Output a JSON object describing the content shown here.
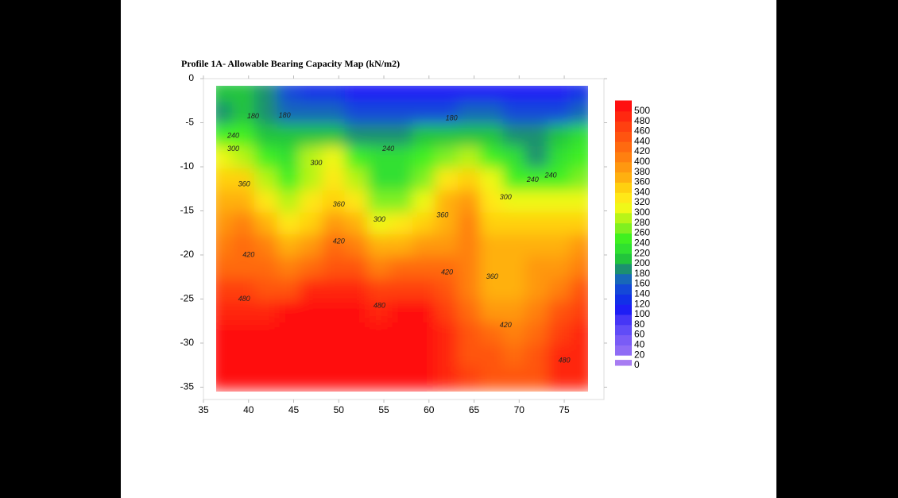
{
  "chart_data": {
    "type": "contour",
    "title": "Profile 1A- Allowable Bearing Capacity Map (kN/m2)",
    "xlim": [
      35,
      79.4
    ],
    "ylim": [
      -36.4,
      0
    ],
    "xticks": [
      35,
      40,
      45,
      50,
      55,
      60,
      65,
      70,
      75
    ],
    "yticks": [
      0,
      -5,
      -10,
      -15,
      -20,
      -25,
      -30,
      -35
    ],
    "x": [
      37,
      39.5,
      42,
      44.5,
      47,
      49.5,
      52,
      54.5,
      57,
      59.5,
      62,
      64.5,
      67,
      69.5,
      72,
      74.5,
      77
    ],
    "y": [
      -1.5,
      -4,
      -6.5,
      -9,
      -11.5,
      -14,
      -16.5,
      -19,
      -21.5,
      -24,
      -26.5,
      -29,
      -31.5,
      -34
    ],
    "z": [
      [
        200,
        210,
        180,
        140,
        130,
        120,
        110,
        100,
        100,
        100,
        100,
        100,
        100,
        100,
        100,
        110,
        130
      ],
      [
        190,
        210,
        190,
        170,
        170,
        160,
        150,
        140,
        140,
        140,
        150,
        160,
        160,
        150,
        140,
        140,
        160
      ],
      [
        240,
        240,
        210,
        200,
        200,
        200,
        190,
        190,
        190,
        200,
        210,
        210,
        200,
        190,
        180,
        200,
        220
      ],
      [
        300,
        290,
        250,
        230,
        280,
        300,
        250,
        220,
        220,
        240,
        270,
        280,
        250,
        220,
        190,
        220,
        240
      ],
      [
        340,
        340,
        290,
        240,
        290,
        320,
        280,
        220,
        230,
        270,
        330,
        340,
        300,
        250,
        240,
        250,
        260
      ],
      [
        370,
        370,
        330,
        280,
        320,
        350,
        330,
        260,
        270,
        310,
        360,
        380,
        320,
        300,
        300,
        300,
        300
      ],
      [
        390,
        400,
        370,
        320,
        350,
        380,
        360,
        310,
        320,
        340,
        370,
        410,
        340,
        340,
        340,
        340,
        340
      ],
      [
        410,
        420,
        400,
        360,
        390,
        420,
        400,
        360,
        370,
        380,
        390,
        410,
        360,
        360,
        370,
        370,
        380
      ],
      [
        430,
        430,
        420,
        400,
        430,
        450,
        440,
        410,
        420,
        420,
        420,
        400,
        360,
        360,
        380,
        390,
        410
      ],
      [
        460,
        460,
        450,
        450,
        480,
        490,
        480,
        460,
        470,
        460,
        440,
        400,
        370,
        370,
        390,
        410,
        440
      ],
      [
        490,
        490,
        490,
        500,
        500,
        500,
        500,
        490,
        500,
        500,
        470,
        420,
        390,
        390,
        410,
        440,
        460
      ],
      [
        500,
        500,
        500,
        500,
        500,
        500,
        500,
        500,
        500,
        500,
        480,
        440,
        420,
        410,
        430,
        470,
        480
      ],
      [
        500,
        500,
        500,
        500,
        500,
        500,
        500,
        500,
        500,
        500,
        490,
        450,
        440,
        430,
        440,
        480,
        490
      ],
      [
        500,
        500,
        500,
        500,
        500,
        500,
        500,
        500,
        500,
        500,
        490,
        460,
        450,
        450,
        450,
        490,
        490
      ]
    ],
    "levels": [
      0,
      20,
      40,
      60,
      80,
      100,
      120,
      140,
      160,
      180,
      200,
      220,
      240,
      260,
      280,
      300,
      320,
      340,
      360,
      380,
      400,
      420,
      440,
      460,
      480,
      500
    ],
    "colors": [
      "#a77cf2",
      "#8f6cf5",
      "#7a5cf6",
      "#604cf7",
      "#4636f6",
      "#1e1ef5",
      "#1230e8",
      "#1448d8",
      "#1868b8",
      "#1c9070",
      "#22c43c",
      "#30e030",
      "#40f020",
      "#80f020",
      "#b8f418",
      "#f0f818",
      "#ffe818",
      "#ffd010",
      "#ffb010",
      "#ff9810",
      "#ff8010",
      "#ff6a10",
      "#ff5410",
      "#ff4010",
      "#ff2810",
      "#ff1010"
    ],
    "contour_labels": [
      {
        "x": 40.5,
        "y": -4.3,
        "value": 180
      },
      {
        "x": 44,
        "y": -4.2,
        "value": 180
      },
      {
        "x": 62.5,
        "y": -4.5,
        "value": 180
      },
      {
        "x": 38.3,
        "y": -6.5,
        "value": 240
      },
      {
        "x": 38.3,
        "y": -8,
        "value": 300
      },
      {
        "x": 39.5,
        "y": -12,
        "value": 360
      },
      {
        "x": 47.5,
        "y": -9.6,
        "value": 300
      },
      {
        "x": 55.5,
        "y": -8,
        "value": 240
      },
      {
        "x": 50,
        "y": -14.3,
        "value": 360
      },
      {
        "x": 54.5,
        "y": -16,
        "value": 300
      },
      {
        "x": 61.5,
        "y": -15.5,
        "value": 360
      },
      {
        "x": 50,
        "y": -18.5,
        "value": 420
      },
      {
        "x": 40,
        "y": -20,
        "value": 420
      },
      {
        "x": 39.5,
        "y": -25,
        "value": 480
      },
      {
        "x": 54.5,
        "y": -25.8,
        "value": 480
      },
      {
        "x": 62,
        "y": -22,
        "value": 420
      },
      {
        "x": 67,
        "y": -22.5,
        "value": 360
      },
      {
        "x": 68.5,
        "y": -13.5,
        "value": 300
      },
      {
        "x": 71.5,
        "y": -11.5,
        "value": 240
      },
      {
        "x": 73.5,
        "y": -11,
        "value": 240
      },
      {
        "x": 68.5,
        "y": -28,
        "value": 420
      },
      {
        "x": 75,
        "y": -32,
        "value": 480
      }
    ]
  }
}
